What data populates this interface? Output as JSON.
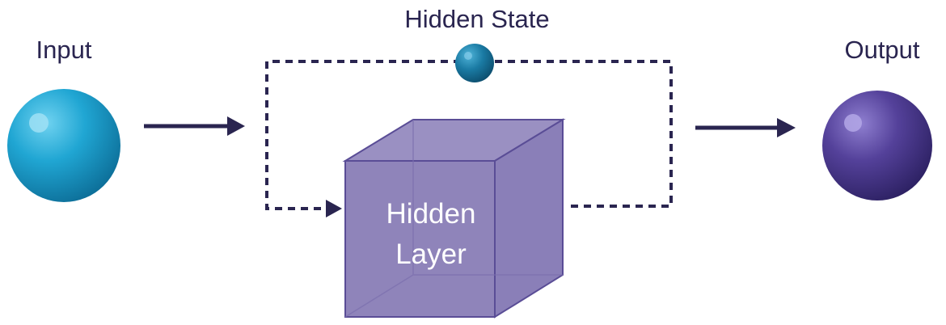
{
  "labels": {
    "input": "Input",
    "hidden_state": "Hidden State",
    "output": "Output",
    "hidden_layer_line1": "Hidden",
    "hidden_layer_line2": "Layer"
  },
  "colors": {
    "text": "#2a2550",
    "arrow": "#2a2550",
    "input_node": "#1fa3d0",
    "hidden_state_node": "#1a6f97",
    "output_node": "#4f3d8c",
    "hidden_layer_fill": "#8f84ba",
    "hidden_layer_edge": "#5a4d96"
  }
}
